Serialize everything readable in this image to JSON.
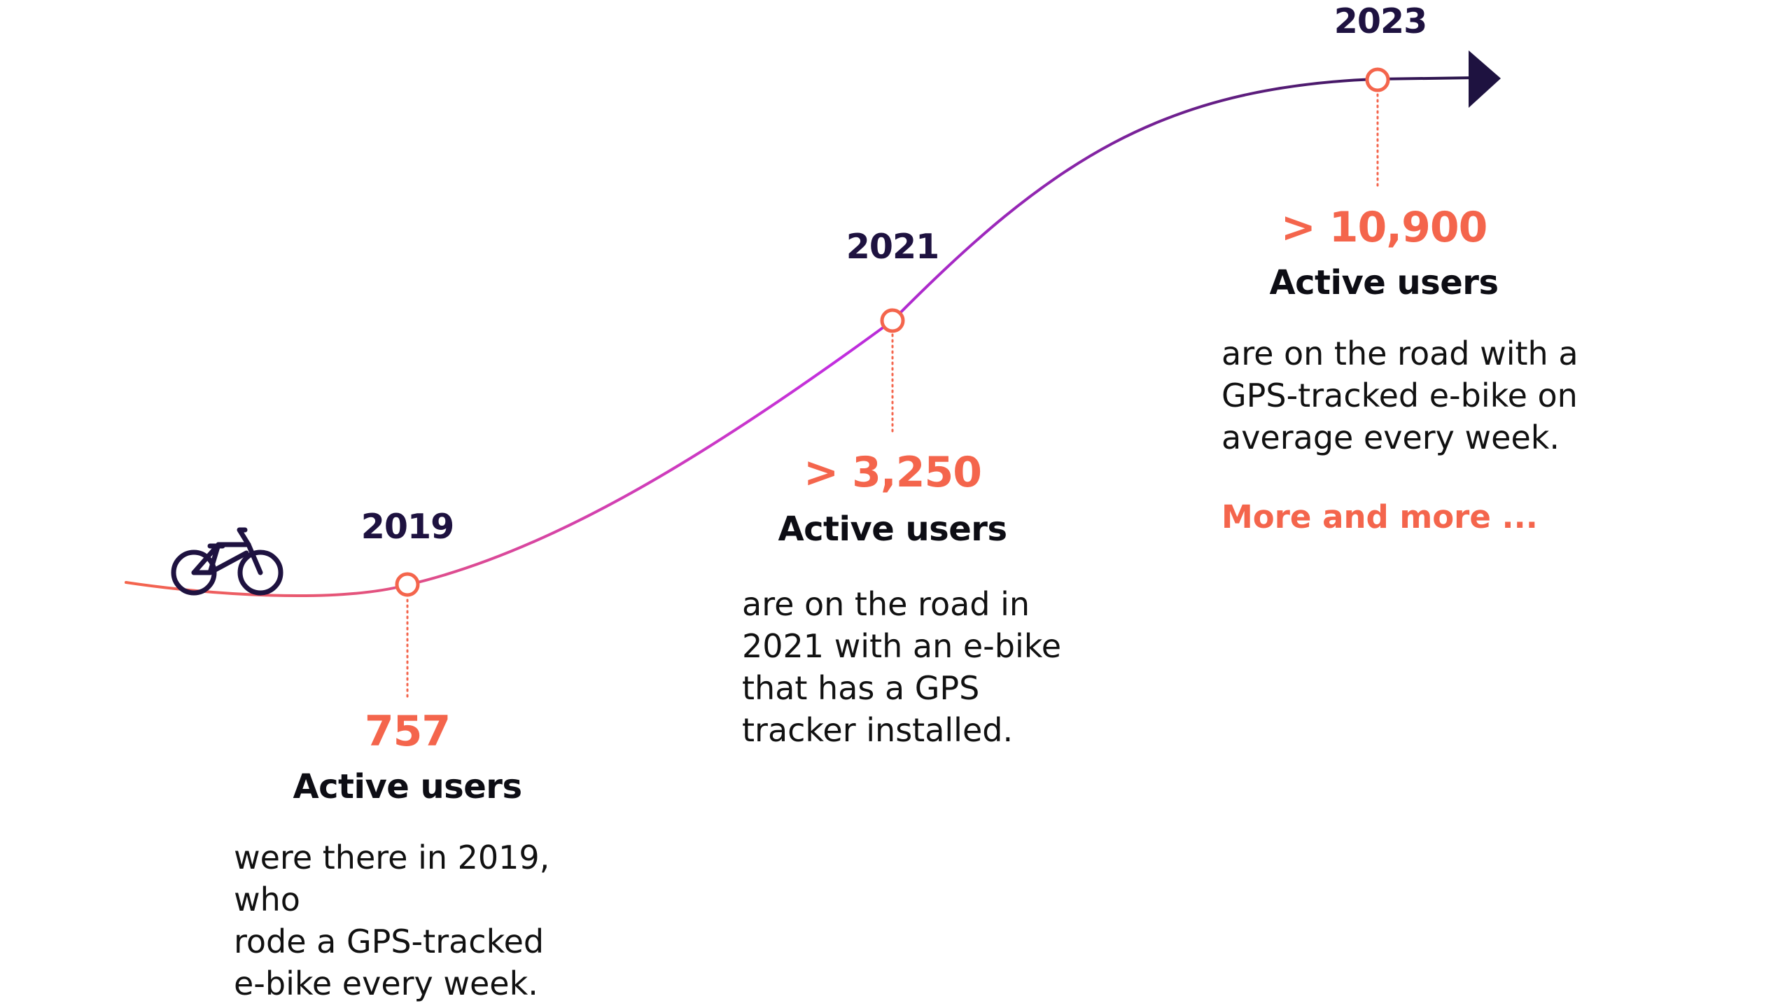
{
  "colors": {
    "curve_start": "#f4654c",
    "curve_mid": "#c22ee0",
    "curve_end": "#1e1240",
    "accent": "#f4654c",
    "year_text": "#1e1240",
    "bike_icon": "#1e1240"
  },
  "icons": {
    "bicycle": "bicycle-icon",
    "arrow": "arrow-head-icon"
  },
  "milestones": [
    {
      "year": "2019",
      "stat": "757",
      "heading": "Active users",
      "description": "were there in 2019, who\nrode a GPS-tracked\ne-bike every week."
    },
    {
      "year": "2021",
      "stat": "> 3,250",
      "heading": "Active users",
      "description": "are on the road in\n2021 with an e-bike\nthat has a GPS\ntracker installed."
    },
    {
      "year": "2023",
      "stat": "> 10,900",
      "heading": "Active users",
      "description": "are on the road with a\nGPS-tracked e-bike on\naverage every week."
    }
  ],
  "more_link": "More and more ..."
}
